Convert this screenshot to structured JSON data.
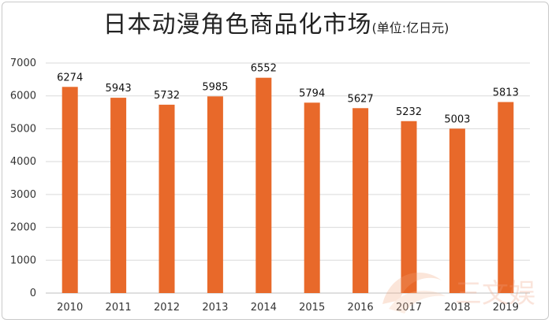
{
  "colors": {
    "bar": "#E8692A",
    "grid": "#d9d9d9",
    "axis": "#bfbfbf"
  },
  "chart_data": {
    "type": "bar",
    "title": "日本动漫角色商品化市场",
    "subtitle": "(单位:亿日元)",
    "categories": [
      "2010",
      "2011",
      "2012",
      "2013",
      "2014",
      "2015",
      "2016",
      "2017",
      "2018",
      "2019"
    ],
    "values": [
      6274,
      5943,
      5732,
      5985,
      6552,
      5794,
      5627,
      5232,
      5003,
      5813
    ],
    "ylim": [
      0,
      7000
    ],
    "yticks": [
      "0",
      "1000",
      "2000",
      "3000",
      "4000",
      "5000",
      "6000",
      "7000"
    ],
    "grid": true,
    "legend": "none"
  },
  "watermark": {
    "text": "三文娱"
  }
}
